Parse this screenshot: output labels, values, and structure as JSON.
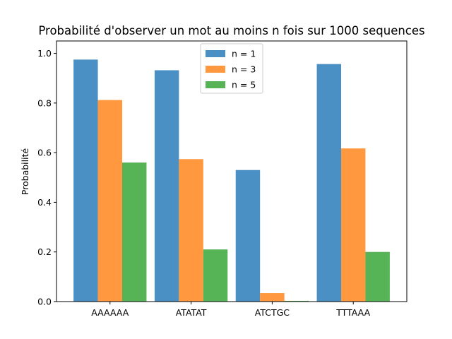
{
  "chart_data": {
    "type": "bar",
    "title": "Probabilité d'observer un mot au moins n fois sur 1000 sequences",
    "xlabel": "",
    "ylabel": "Probabilité",
    "categories": [
      "AAAAAA",
      "ATATAT",
      "ATCTGC",
      "TTTAAA"
    ],
    "series": [
      {
        "name": "n = 1",
        "color": "#4a90c4",
        "values": [
          0.975,
          0.932,
          0.53,
          0.957
        ]
      },
      {
        "name": "n = 3",
        "color": "#ff983e",
        "values": [
          0.812,
          0.574,
          0.034,
          0.617
        ]
      },
      {
        "name": "n = 5",
        "color": "#56b356",
        "values": [
          0.56,
          0.21,
          0.003,
          0.2
        ]
      }
    ],
    "ylim": [
      0,
      1.05
    ],
    "yticks": [
      "0.0",
      "0.2",
      "0.4",
      "0.6",
      "0.8",
      "1.0"
    ],
    "grid": false,
    "legend_position": "top-center"
  }
}
